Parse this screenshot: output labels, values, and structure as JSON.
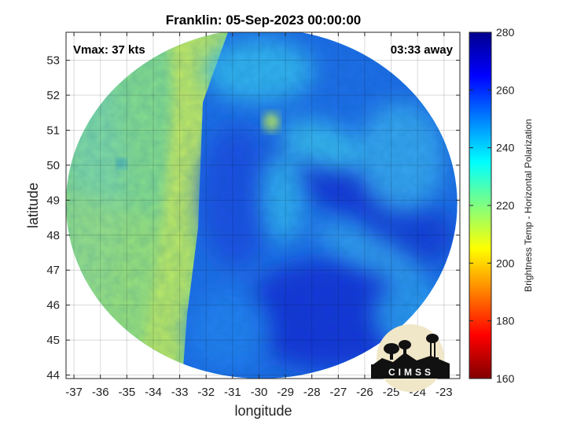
{
  "title": "Franklin: 05-Sep-2023 00:00:00",
  "annotations": {
    "vmax": "Vmax: 37 kts",
    "time_away": "03:33 away"
  },
  "axes": {
    "xlabel": "longitude",
    "ylabel": "latitude",
    "xlim": [
      -37.3,
      -22.4
    ],
    "ylim": [
      43.9,
      53.8
    ],
    "xticks": [
      "-37",
      "-36",
      "-35",
      "-34",
      "-33",
      "-32",
      "-31",
      "-30",
      "-29",
      "-28",
      "-27",
      "-26",
      "-25",
      "-24",
      "-23"
    ],
    "yticks": [
      "44",
      "45",
      "46",
      "47",
      "48",
      "49",
      "50",
      "51",
      "52",
      "53"
    ],
    "grid": true
  },
  "colorbar": {
    "label": "Brightness Temp - Horizontal Polarization",
    "range": [
      160,
      280
    ],
    "ticks": [
      "160",
      "180",
      "200",
      "220",
      "240",
      "260",
      "280"
    ],
    "colors": [
      "#800000",
      "#ff0000",
      "#ff8000",
      "#ffff00",
      "#80ff80",
      "#00ffff",
      "#0080ff",
      "#0000ff",
      "#00008f"
    ]
  },
  "swath": {
    "center_lon": -29.9,
    "center_lat": 48.9,
    "radius_lon": 7.4,
    "radius_lat": 5.0
  },
  "logo": {
    "text": "CIMSS"
  }
}
